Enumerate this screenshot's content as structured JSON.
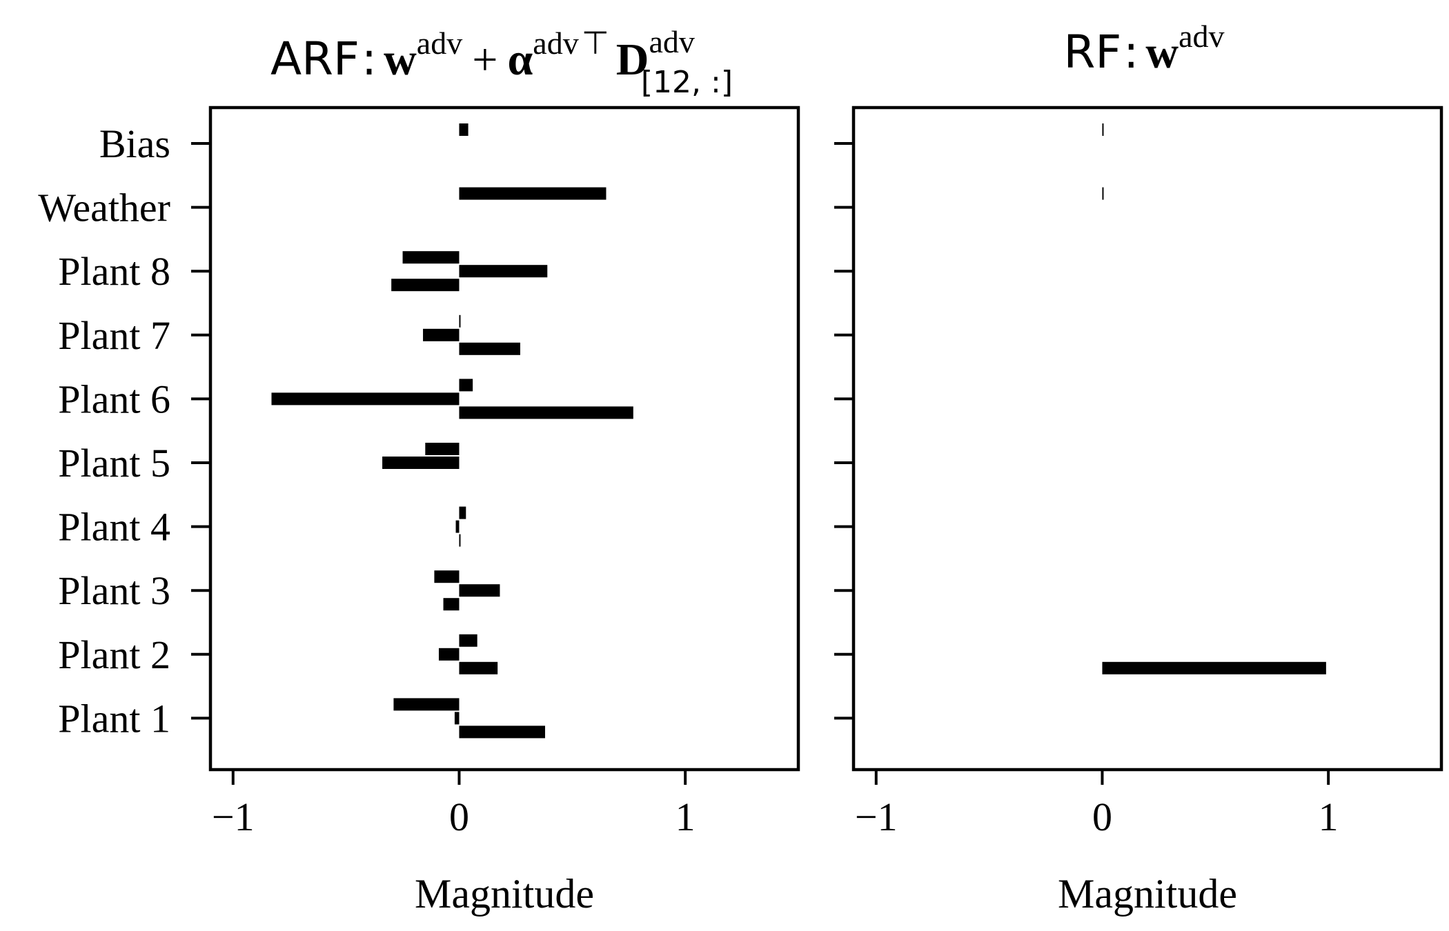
{
  "chart_data": [
    {
      "type": "bar",
      "orientation": "horizontal",
      "title": {
        "prefix": "ARF",
        "colon": ":",
        "w": "w",
        "w_sup": "adv",
        "plus": "+",
        "alpha": "α",
        "alpha_sup": "adv",
        "transpose": "⊤",
        "D": "D",
        "D_sup": "adv",
        "D_sub": "[12, :]"
      },
      "xlabel": "Magnitude",
      "xlim": [
        -1.1,
        1.5
      ],
      "xticks": [
        {
          "value": -1,
          "label": "−1"
        },
        {
          "value": 0,
          "label": "0"
        },
        {
          "value": 1,
          "label": "1"
        }
      ],
      "categories": [
        "Bias",
        "Weather",
        "Plant 8",
        "Plant 7",
        "Plant 6",
        "Plant 5",
        "Plant 4",
        "Plant 3",
        "Plant 2",
        "Plant 1"
      ],
      "bars_per_category": 3,
      "values": [
        [
          0.04,
          null,
          null
        ],
        [
          0.65,
          null,
          null
        ],
        [
          -0.25,
          0.39,
          -0.3
        ],
        [
          0.0,
          -0.16,
          0.27
        ],
        [
          0.06,
          -0.83,
          0.77
        ],
        [
          -0.15,
          -0.34,
          null
        ],
        [
          0.03,
          -0.015,
          0.005
        ],
        [
          -0.11,
          0.18,
          -0.07
        ],
        [
          0.08,
          -0.09,
          0.17
        ],
        [
          -0.29,
          -0.02,
          0.38
        ]
      ]
    },
    {
      "type": "bar",
      "orientation": "horizontal",
      "title": {
        "prefix": "RF",
        "colon": ":",
        "w": "w",
        "w_sup": "adv"
      },
      "xlabel": "Magnitude",
      "xlim": [
        -1.1,
        1.5
      ],
      "xticks": [
        {
          "value": -1,
          "label": "−1"
        },
        {
          "value": 0,
          "label": "0"
        },
        {
          "value": 1,
          "label": "1"
        }
      ],
      "categories": [
        "Bias",
        "Weather",
        "Plant 8",
        "Plant 7",
        "Plant 6",
        "Plant 5",
        "Plant 4",
        "Plant 3",
        "Plant 2",
        "Plant 1"
      ],
      "bars_per_category": 3,
      "values": [
        [
          0.003,
          null,
          null
        ],
        [
          0.003,
          null,
          null
        ],
        [
          null,
          null,
          null
        ],
        [
          null,
          null,
          null
        ],
        [
          null,
          null,
          null
        ],
        [
          null,
          null,
          null
        ],
        [
          null,
          null,
          null
        ],
        [
          null,
          null,
          null
        ],
        [
          null,
          null,
          0.99
        ],
        [
          null,
          null,
          null
        ]
      ]
    }
  ]
}
